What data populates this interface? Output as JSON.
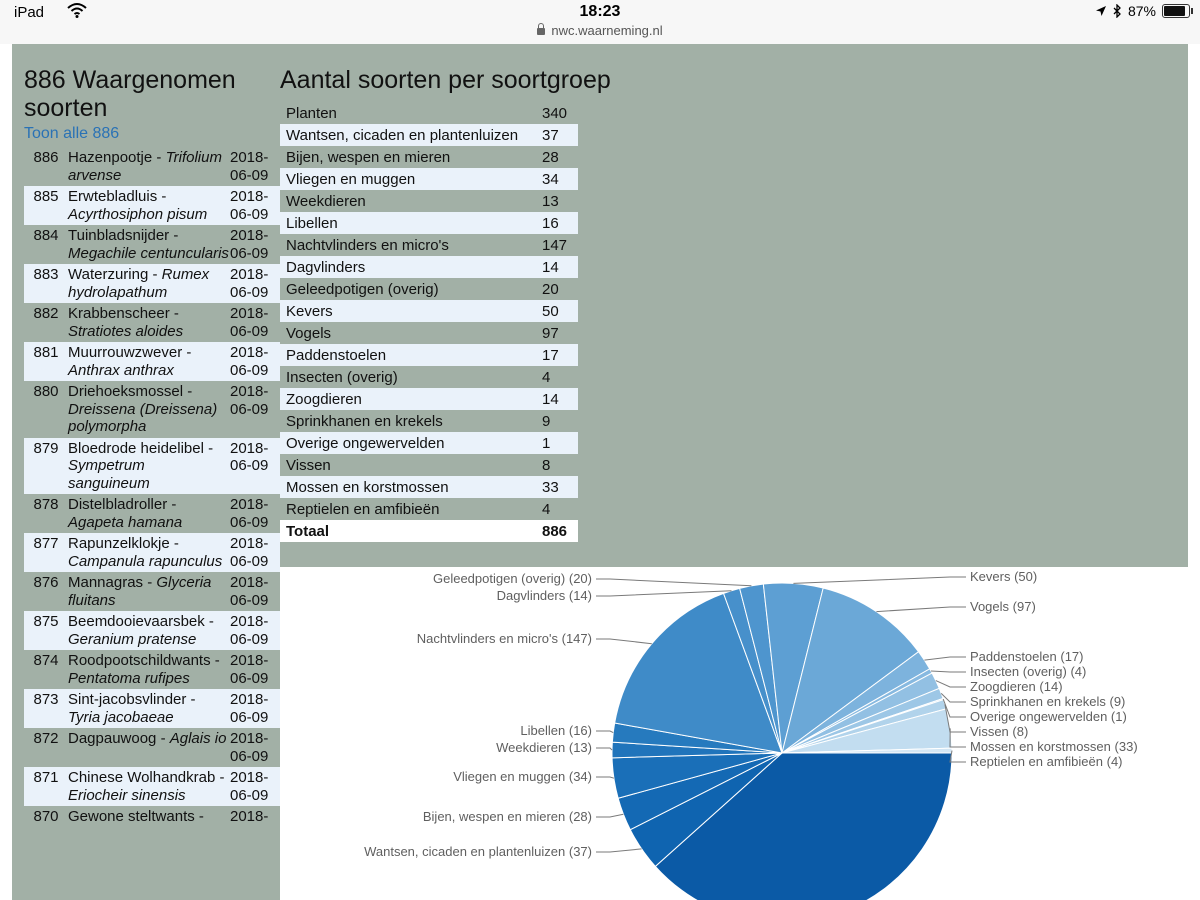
{
  "status": {
    "carrier": "iPad",
    "time": "18:23",
    "battery": "87%",
    "battery_level": 0.87,
    "url": "nwc.waarneming.nl"
  },
  "species": {
    "title": "886 Waargenomen soorten",
    "show_all": "Toon alle 886",
    "rows": [
      {
        "num": "886",
        "name": "Hazenpootje -",
        "latin": "Trifolium arvense",
        "date": "2018-06-09"
      },
      {
        "num": "885",
        "name": "Erwtebladluis -",
        "latin": "Acyrthosiphon pisum",
        "date": "2018-06-09"
      },
      {
        "num": "884",
        "name": "Tuinbladsnijder -",
        "latin": "Megachile centuncularis",
        "date": "2018-06-09"
      },
      {
        "num": "883",
        "name": "Waterzuring -",
        "latin": "Rumex hydrolapathum",
        "date": "2018-06-09"
      },
      {
        "num": "882",
        "name": "Krabbenscheer -",
        "latin": "Stratiotes aloides",
        "date": "2018-06-09"
      },
      {
        "num": "881",
        "name": "Muurrouwzwever -",
        "latin": "Anthrax anthrax",
        "date": "2018-06-09"
      },
      {
        "num": "880",
        "name": "Driehoeksmossel -",
        "latin": "Dreissena (Dreissena) polymorpha",
        "date": "2018-06-09"
      },
      {
        "num": "879",
        "name": "Bloedrode heidelibel -",
        "latin": "Sympetrum sanguineum",
        "date": "2018-06-09"
      },
      {
        "num": "878",
        "name": "Distelbladroller -",
        "latin": "Agapeta hamana",
        "date": "2018-06-09"
      },
      {
        "num": "877",
        "name": "Rapunzelklokje -",
        "latin": "Campanula rapunculus",
        "date": "2018-06-09"
      },
      {
        "num": "876",
        "name": "Mannagras -",
        "latin": "Glyceria fluitans",
        "date": "2018-06-09"
      },
      {
        "num": "875",
        "name": "Beemdooievaarsbek -",
        "latin": "Geranium pratense",
        "date": "2018-06-09"
      },
      {
        "num": "874",
        "name": "Roodpootschildwants -",
        "latin": "Pentatoma rufipes",
        "date": "2018-06-09"
      },
      {
        "num": "873",
        "name": "Sint-jacobsvlinder -",
        "latin": "Tyria jacobaeae",
        "date": "2018-06-09"
      },
      {
        "num": "872",
        "name": "Dagpauwoog -",
        "latin": "Aglais io",
        "date": "2018-06-09"
      },
      {
        "num": "871",
        "name": "Chinese Wolhandkrab -",
        "latin": "Eriocheir sinensis",
        "date": "2018-06-09"
      },
      {
        "num": "870",
        "name": "Gewone steltwants -",
        "latin": "",
        "date": "2018-"
      }
    ]
  },
  "groups": {
    "title": "Aantal soorten per soortgroep",
    "rows": [
      {
        "name": "Planten",
        "count": "340"
      },
      {
        "name": "Wantsen, cicaden en plantenluizen",
        "count": "37"
      },
      {
        "name": "Bijen, wespen en mieren",
        "count": "28"
      },
      {
        "name": "Vliegen en muggen",
        "count": "34"
      },
      {
        "name": "Weekdieren",
        "count": "13"
      },
      {
        "name": "Libellen",
        "count": "16"
      },
      {
        "name": "Nachtvlinders en micro's",
        "count": "147"
      },
      {
        "name": "Dagvlinders",
        "count": "14"
      },
      {
        "name": "Geleedpotigen (overig)",
        "count": "20"
      },
      {
        "name": "Kevers",
        "count": "50"
      },
      {
        "name": "Vogels",
        "count": "97"
      },
      {
        "name": "Paddenstoelen",
        "count": "17"
      },
      {
        "name": "Insecten (overig)",
        "count": "4"
      },
      {
        "name": "Zoogdieren",
        "count": "14"
      },
      {
        "name": "Sprinkhanen en krekels",
        "count": "9"
      },
      {
        "name": "Overige ongewervelden",
        "count": "1"
      },
      {
        "name": "Vissen",
        "count": "8"
      },
      {
        "name": "Mossen en korstmossen",
        "count": "33"
      },
      {
        "name": "Reptielen en amfibieën",
        "count": "4"
      }
    ],
    "total_label": "Totaal",
    "total_count": "886"
  },
  "chart_data": {
    "type": "pie",
    "slices": [
      {
        "label": "Planten",
        "value": 340,
        "color": "#0b5aa6"
      },
      {
        "label": "Wantsen, cicaden en plantenluizen",
        "value": 37,
        "color": "#0f64b0"
      },
      {
        "label": "Bijen, wespen en mieren",
        "value": 28,
        "color": "#1469b4"
      },
      {
        "label": "Vliegen en muggen",
        "value": 34,
        "color": "#1a6fb8"
      },
      {
        "label": "Weekdieren",
        "value": 13,
        "color": "#2074bb"
      },
      {
        "label": "Libellen",
        "value": 16,
        "color": "#267abe"
      },
      {
        "label": "Nachtvlinders en micro's",
        "value": 147,
        "color": "#3f8bc8"
      },
      {
        "label": "Dagvlinders",
        "value": 14,
        "color": "#4790cb"
      },
      {
        "label": "Geleedpotigen (overig)",
        "value": 20,
        "color": "#4e95ce"
      },
      {
        "label": "Kevers",
        "value": 50,
        "color": "#5d9fd3"
      },
      {
        "label": "Vogels",
        "value": 97,
        "color": "#6ba8d7"
      },
      {
        "label": "Paddenstoelen",
        "value": 17,
        "color": "#7db3dd"
      },
      {
        "label": "Insecten (overig)",
        "value": 4,
        "color": "#87b9e0"
      },
      {
        "label": "Zoogdieren",
        "value": 14,
        "color": "#92c0e3"
      },
      {
        "label": "Sprinkhanen en krekels",
        "value": 9,
        "color": "#9dc7e6"
      },
      {
        "label": "Overige ongewervelden",
        "value": 1,
        "color": "#a7cde9"
      },
      {
        "label": "Vissen",
        "value": 8,
        "color": "#b1d3eb"
      },
      {
        "label": "Mossen en korstmossen",
        "value": 33,
        "color": "#c2ddf0"
      },
      {
        "label": "Reptielen en amfibieën",
        "value": 4,
        "color": "#d3e6f4"
      }
    ],
    "label_format": "{label} ({value})",
    "label_color": "#5f5f5f"
  }
}
